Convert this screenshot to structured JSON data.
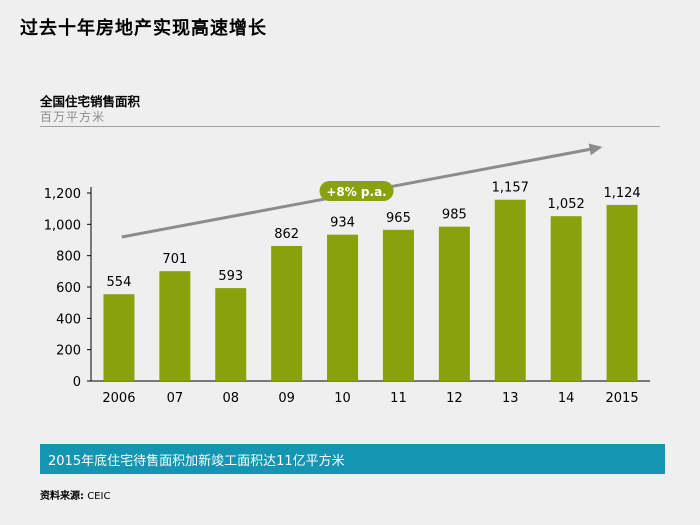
{
  "slide": {
    "title": "过去十年房地产实现高速增长",
    "footer_note": "2015年底住宅待售面积加新竣工面积达11亿平方米",
    "source_label": "资料来源:",
    "source_value": "CEIC"
  },
  "colors": {
    "bar": "#8aa10e",
    "badge": "#8aa10e",
    "arrow": "#8c8c8c",
    "footer_band": "#1495b2"
  },
  "chart_data": {
    "type": "bar",
    "title": "全国住宅销售面积",
    "unit": "百万平方米",
    "categories": [
      "2006",
      "07",
      "08",
      "09",
      "10",
      "11",
      "12",
      "13",
      "14",
      "2015"
    ],
    "values": [
      554,
      701,
      593,
      862,
      934,
      965,
      985,
      1157,
      1052,
      1124
    ],
    "value_labels": [
      "554",
      "701",
      "593",
      "862",
      "934",
      "965",
      "985",
      "1,157",
      "1,052",
      "1,124"
    ],
    "ylim": [
      0,
      1200
    ],
    "yticks": [
      0,
      200,
      400,
      600,
      800,
      1000,
      1200
    ],
    "ytick_labels": [
      "0",
      "200",
      "400",
      "600",
      "800",
      "1,000",
      "1,200"
    ],
    "grid": false,
    "annotation": "+8% p.a."
  }
}
